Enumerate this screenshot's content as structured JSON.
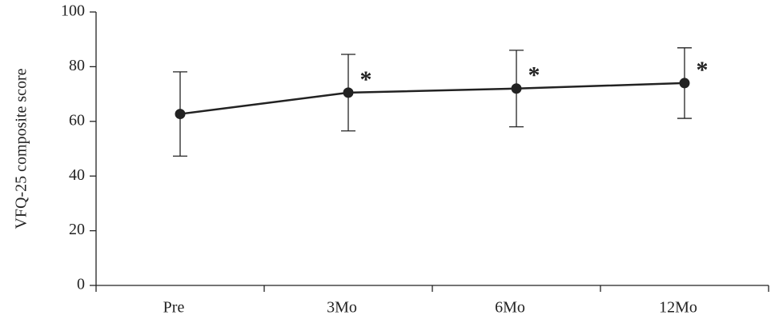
{
  "chart_data": {
    "type": "line",
    "y_label": "VFQ-25 composite score",
    "categories": [
      "Pre",
      "3Mo",
      "6Mo",
      "12Mo"
    ],
    "series": [
      {
        "values": [
          62.7,
          70.5,
          72.0,
          74.0
        ],
        "errors": [
          15.4,
          14.0,
          14.0,
          12.9
        ],
        "color": "#222222",
        "annotations": [
          null,
          "*",
          "*",
          "*"
        ]
      }
    ],
    "ylim": [
      0,
      100
    ],
    "yticks": [
      0,
      20,
      40,
      60,
      80,
      100
    ],
    "grid": false
  }
}
